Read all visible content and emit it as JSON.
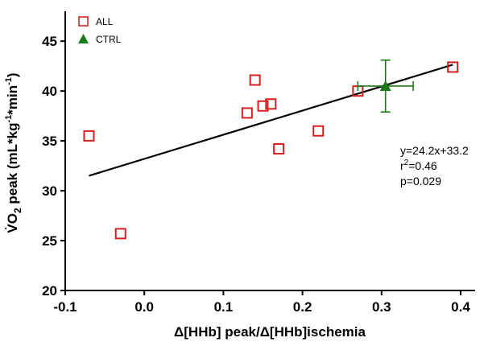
{
  "chart_data": {
    "type": "scatter",
    "xlabel": "Δ[HHb] peak/Δ[HHb]ischemia",
    "ylabel": {
      "base": "V̇O",
      "sub": "2",
      "main": " peak (mL*kg",
      "sup1": "-1",
      "mid": "*min",
      "sup2": "-1",
      "end": ")"
    },
    "xlim": [
      -0.1,
      0.4
    ],
    "ylim": [
      20,
      48
    ],
    "xticks": [
      "-0.1",
      "0.0",
      "0.1",
      "0.2",
      "0.3",
      "0.4"
    ],
    "xtick_values": [
      -0.1,
      0.0,
      0.1,
      0.2,
      0.3,
      0.4
    ],
    "yticks": [
      "20",
      "25",
      "30",
      "35",
      "40",
      "45"
    ],
    "ytick_values": [
      20,
      25,
      30,
      35,
      40,
      45
    ],
    "grid": false,
    "legend_position": "top-left",
    "series": [
      {
        "name": "ALL",
        "marker": "open-square",
        "color": "#d62020",
        "points": [
          {
            "x": -0.07,
            "y": 35.5
          },
          {
            "x": -0.03,
            "y": 25.7
          },
          {
            "x": 0.13,
            "y": 37.8
          },
          {
            "x": 0.14,
            "y": 41.1
          },
          {
            "x": 0.15,
            "y": 38.5
          },
          {
            "x": 0.16,
            "y": 38.7
          },
          {
            "x": 0.17,
            "y": 34.2
          },
          {
            "x": 0.22,
            "y": 36.0
          },
          {
            "x": 0.27,
            "y": 40.0
          },
          {
            "x": 0.39,
            "y": 42.4
          }
        ]
      },
      {
        "name": "CTRL",
        "marker": "filled-triangle",
        "color": "#1a7a1a",
        "points": [
          {
            "x": 0.305,
            "y": 40.5,
            "x_err": 0.035,
            "y_err": 2.6
          }
        ]
      }
    ],
    "regression": {
      "x_start": -0.07,
      "x_end": 0.39,
      "slope": 24.2,
      "intercept": 33.2
    },
    "annotation": {
      "line1": "y=24.2x+33.2",
      "line2_base": "r",
      "line2_sup": "2",
      "line2_rest": "=0.46",
      "line3": "p=0.029"
    }
  }
}
